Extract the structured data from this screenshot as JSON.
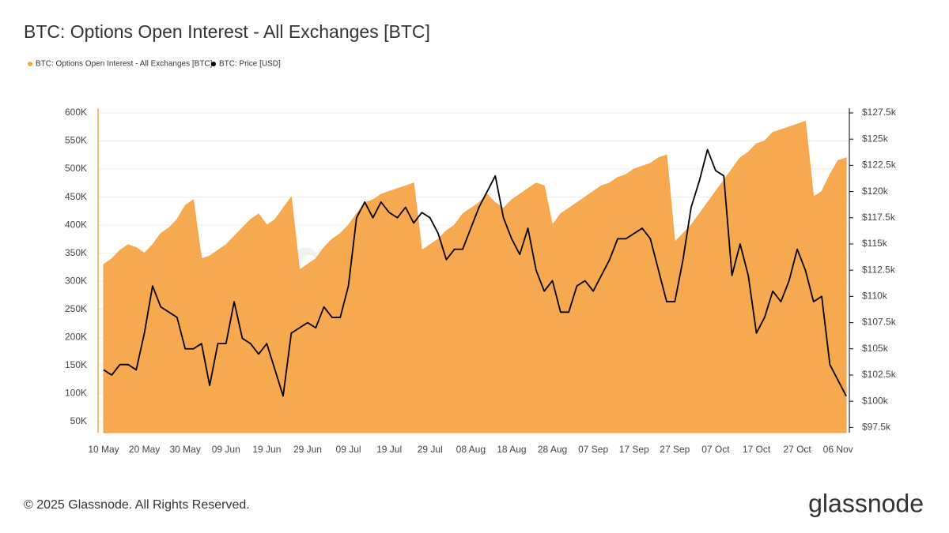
{
  "chart_data": {
    "type": "area_line",
    "title": "BTC: Options Open Interest - All Exchanges [BTC]",
    "footer": "© 2025 Glassnode. All Rights Reserved.",
    "logo": "glassnode",
    "categories": [
      "10 May",
      null,
      null,
      null,
      null,
      "20 May",
      null,
      null,
      null,
      null,
      "30 May",
      null,
      null,
      null,
      null,
      "09 Jun",
      null,
      null,
      null,
      null,
      "19 Jun",
      null,
      null,
      null,
      null,
      "29 Jun",
      null,
      null,
      null,
      null,
      "09 Jul",
      null,
      null,
      null,
      null,
      "19 Jul",
      null,
      null,
      null,
      null,
      "29 Jul",
      null,
      null,
      null,
      null,
      "08 Aug",
      null,
      null,
      null,
      null,
      "18 Aug",
      null,
      null,
      null,
      null,
      "28 Aug",
      null,
      null,
      null,
      null,
      "07 Sep",
      null,
      null,
      null,
      null,
      "17 Sep",
      null,
      null,
      null,
      null,
      "27 Sep",
      null,
      null,
      null,
      null,
      "07 Oct",
      null,
      null,
      null,
      null,
      "17 Oct",
      null,
      null,
      null,
      null,
      "27 Oct",
      null,
      null,
      null,
      null,
      "06 Nov",
      null
    ],
    "series": [
      {
        "name": "BTC: Options Open Interest - All Exchanges [BTC]",
        "color": "#f7a447",
        "axis": "y",
        "values": [
          330000,
          340000,
          355000,
          365000,
          360000,
          350000,
          365000,
          385000,
          395000,
          410000,
          435000,
          445000,
          340000,
          345000,
          355000,
          365000,
          380000,
          395000,
          410000,
          420000,
          400000,
          410000,
          430000,
          450000,
          320000,
          330000,
          340000,
          360000,
          375000,
          385000,
          400000,
          420000,
          440000,
          445000,
          455000,
          460000,
          465000,
          470000,
          475000,
          355000,
          365000,
          375000,
          390000,
          400000,
          420000,
          430000,
          440000,
          455000,
          440000,
          430000,
          445000,
          455000,
          465000,
          475000,
          470000,
          400000,
          420000,
          430000,
          440000,
          450000,
          460000,
          470000,
          475000,
          485000,
          490000,
          500000,
          505000,
          510000,
          520000,
          525000,
          370000,
          385000,
          400000,
          420000,
          440000,
          460000,
          480000,
          500000,
          520000,
          530000,
          545000,
          550000,
          565000,
          570000,
          575000,
          580000,
          585000,
          450000,
          460000,
          490000,
          515000,
          520000
        ]
      },
      {
        "name": "BTC: Price [USD]",
        "color": "#000000",
        "axis": "y2",
        "values": [
          103000,
          102500,
          103500,
          103500,
          103000,
          106500,
          111000,
          109000,
          108500,
          108000,
          105000,
          105000,
          105500,
          101500,
          105500,
          105500,
          109500,
          106000,
          105500,
          104500,
          105500,
          103000,
          100500,
          106500,
          107000,
          107500,
          107000,
          109000,
          108000,
          108000,
          111000,
          117500,
          119000,
          117500,
          119000,
          118000,
          117500,
          118500,
          117000,
          118000,
          117500,
          116000,
          113500,
          114500,
          114500,
          116500,
          118500,
          120000,
          121500,
          117500,
          115500,
          114000,
          116500,
          112500,
          110500,
          111500,
          108500,
          108500,
          111000,
          111500,
          110500,
          112000,
          113500,
          115500,
          115500,
          116000,
          116500,
          115500,
          112500,
          109500,
          109500,
          113500,
          118500,
          121000,
          124000,
          122000,
          121500,
          112000,
          115000,
          112000,
          106500,
          108000,
          110500,
          109500,
          111500,
          114500,
          112500,
          109500,
          110000,
          103500,
          102000,
          100500
        ]
      }
    ],
    "ylim": [
      30000,
      600000
    ],
    "yticks": [
      {
        "value": 50000,
        "label": "50K"
      },
      {
        "value": 100000,
        "label": "100K"
      },
      {
        "value": 150000,
        "label": "150K"
      },
      {
        "value": 200000,
        "label": "200K"
      },
      {
        "value": 250000,
        "label": "250K"
      },
      {
        "value": 300000,
        "label": "300K"
      },
      {
        "value": 350000,
        "label": "350K"
      },
      {
        "value": 400000,
        "label": "400K"
      },
      {
        "value": 450000,
        "label": "450K"
      },
      {
        "value": 500000,
        "label": "500K"
      },
      {
        "value": 550000,
        "label": "550K"
      },
      {
        "value": 600000,
        "label": "600K"
      }
    ],
    "y2lim": [
      97000,
      127500
    ],
    "y2ticks": [
      {
        "value": 97500,
        "label": "$97.5k"
      },
      {
        "value": 100000,
        "label": "$100k"
      },
      {
        "value": 102500,
        "label": "$102.5k"
      },
      {
        "value": 105000,
        "label": "$105k"
      },
      {
        "value": 107500,
        "label": "$107.5k"
      },
      {
        "value": 110000,
        "label": "$110k"
      },
      {
        "value": 112500,
        "label": "$112.5k"
      },
      {
        "value": 115000,
        "label": "$115k"
      },
      {
        "value": 117500,
        "label": "$117.5k"
      },
      {
        "value": 120000,
        "label": "$120k"
      },
      {
        "value": 122500,
        "label": "$122.5k"
      },
      {
        "value": 125000,
        "label": "$125k"
      },
      {
        "value": 127500,
        "label": "$127.5k"
      }
    ],
    "grid": true
  }
}
